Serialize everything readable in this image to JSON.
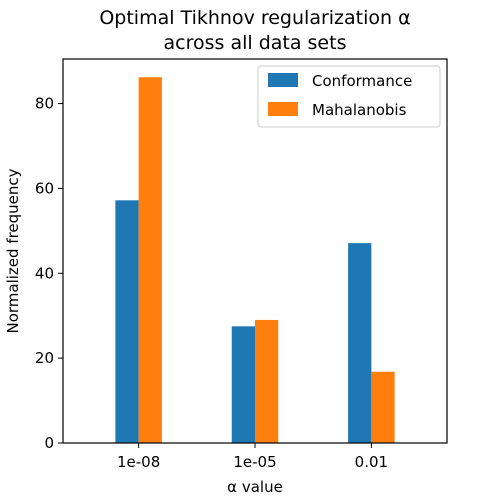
{
  "chart_data": {
    "type": "bar",
    "title_lines": [
      "Optimal Tikhnov regularization α",
      "across all data sets"
    ],
    "xlabel": "α value",
    "ylabel": "Normalized frequency",
    "categories": [
      "1e-08",
      "1e-05",
      "0.01"
    ],
    "series": [
      {
        "name": "Conformance",
        "color": "#1f77b4",
        "values": [
          57.2,
          27.5,
          47.1
        ]
      },
      {
        "name": "Mahalanobis",
        "color": "#ff7f0e",
        "values": [
          86.2,
          29.0,
          16.8
        ]
      }
    ],
    "yticks": [
      0,
      20,
      40,
      60,
      80
    ],
    "ylim": [
      0,
      90.5
    ],
    "legend_position": "top-right",
    "grid": false
  }
}
